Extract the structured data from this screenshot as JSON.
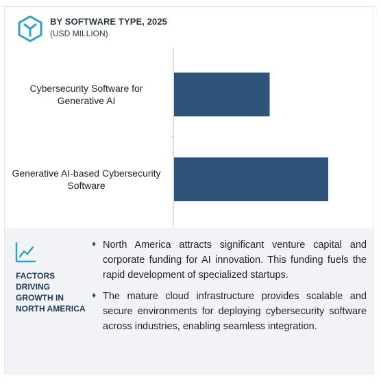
{
  "header": {
    "title": "BY SOFTWARE TYPE, 2025",
    "subtitle": "(USD MILLION)",
    "logo_icon": "hexagon-cube-icon"
  },
  "chart_data": {
    "type": "bar",
    "orientation": "horizontal",
    "title": "BY SOFTWARE TYPE, 2025",
    "subtitle": "(USD MILLION)",
    "categories": [
      "Cybersecurity Software for Generative AI",
      "Generative AI-based Cybersecurity Software"
    ],
    "category_lines": [
      [
        "Cybersecurity Software for",
        "Generative AI"
      ],
      [
        "Generative AI-based Cybersecurity",
        "Software"
      ]
    ],
    "values": [
      62,
      100
    ],
    "xlim": [
      0,
      120
    ],
    "bar_color": "#2e5479",
    "axis_color": "#b8bcc2",
    "grid": false,
    "legend": "none"
  },
  "factors": {
    "label": "FACTORS DRIVING GROWTH IN NORTH AMERICA",
    "label_lines": [
      "FACTORS DRIVING",
      "GROWTH IN",
      "NORTH AMERICA"
    ],
    "icon": "line-chart-icon",
    "bullet_icon": "♦",
    "bullets": [
      "North America attracts significant venture capital and corporate funding for AI innovation. This funding fuels the rapid development of specialized startups.",
      "The mature cloud infrastructure provides scalable and secure environments for deploying cybersecurity software across industries, enabling seamless integration."
    ]
  },
  "colors": {
    "accent": "#2aa3c4",
    "panel": "#f1f3f7",
    "text_dark": "#1d3a57"
  }
}
